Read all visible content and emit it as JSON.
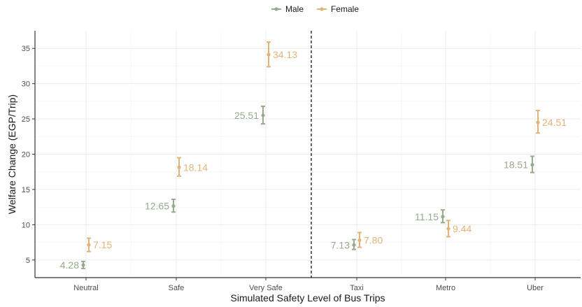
{
  "chart_data": {
    "type": "scatter",
    "xlabel": "Simulated Safety Level of Bus Trips",
    "ylabel": "Welfare Change (EGP/Trip)",
    "categories": [
      "Neutral",
      "Safe",
      "Very Safe",
      "Taxi",
      "Metro",
      "Uber"
    ],
    "ylim": [
      2.5,
      37.5
    ],
    "yticks": [
      5,
      10,
      15,
      20,
      25,
      30,
      35
    ],
    "grid": true,
    "legend_position": "top",
    "divider_after_category": "Very Safe",
    "series": [
      {
        "name": "Male",
        "color": "#9aaa8c",
        "values": [
          4.28,
          12.65,
          25.51,
          7.13,
          11.15,
          18.51
        ],
        "ci_low": [
          3.8,
          11.8,
          24.3,
          6.5,
          10.3,
          17.4
        ],
        "ci_high": [
          4.8,
          13.6,
          26.8,
          7.9,
          12.1,
          19.7
        ],
        "labels": [
          "4.28",
          "12.65",
          "25.51",
          "7.13",
          "11.15",
          "18.51"
        ]
      },
      {
        "name": "Female",
        "color": "#e3b37a",
        "values": [
          7.15,
          18.14,
          34.13,
          7.8,
          9.44,
          24.51
        ],
        "ci_low": [
          6.2,
          16.9,
          32.4,
          6.8,
          8.3,
          23.0
        ],
        "ci_high": [
          8.1,
          19.5,
          35.9,
          8.9,
          10.6,
          26.2
        ],
        "labels": [
          "7.15",
          "18.14",
          "34.13",
          "7.80",
          "9.44",
          "24.51"
        ]
      }
    ]
  }
}
